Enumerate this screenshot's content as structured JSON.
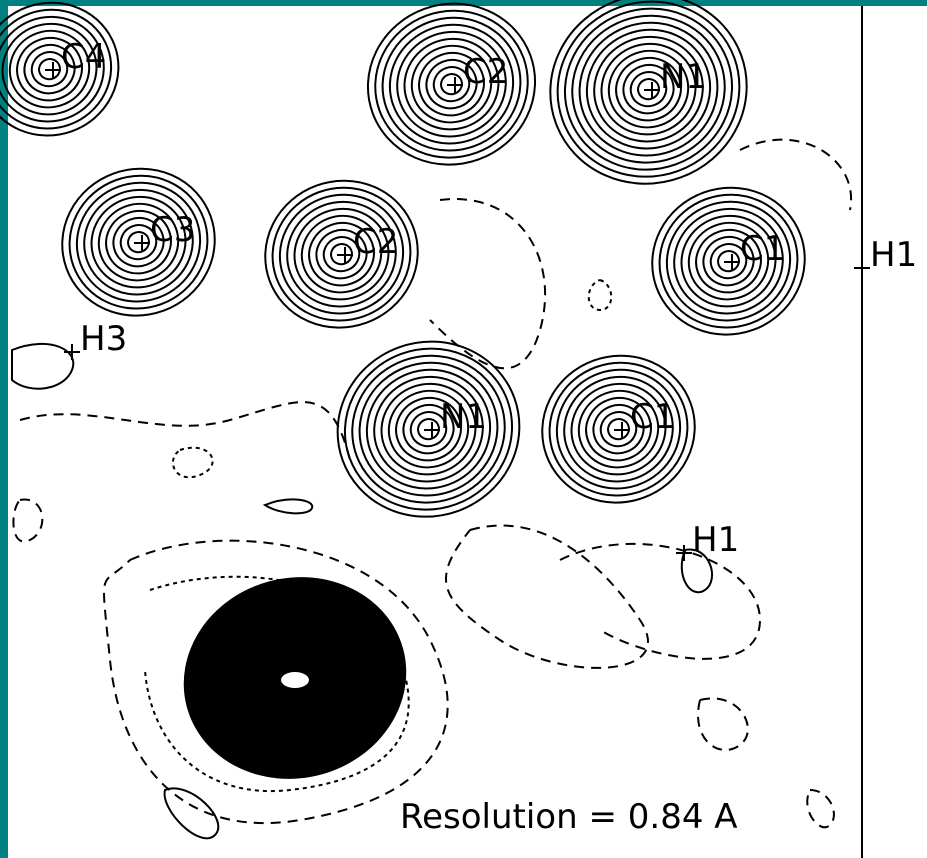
{
  "atoms": [
    {
      "label": "C4"
    },
    {
      "label": "C2"
    },
    {
      "label": "N1"
    },
    {
      "label": "C3"
    },
    {
      "label": "C2"
    },
    {
      "label": "C1"
    },
    {
      "label": "H1"
    },
    {
      "label": "H3"
    },
    {
      "label": "N1"
    },
    {
      "label": "C1"
    },
    {
      "label": "H1"
    }
  ],
  "resolution_label": "Resolution = 0.84 A"
}
